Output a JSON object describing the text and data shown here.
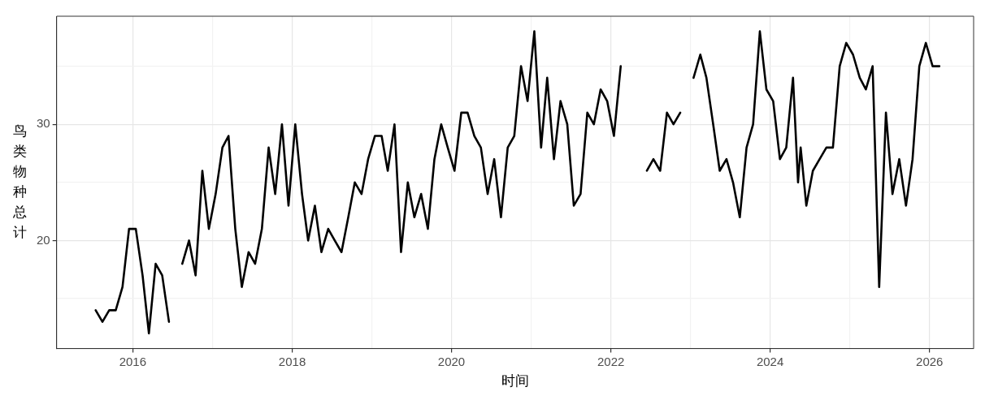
{
  "chart_data": {
    "type": "line",
    "xlabel": "时间",
    "ylabel": "鸟类物种总计",
    "x": [
      "2015-07-15",
      "2015-08-15",
      "2015-09-15",
      "2015-10-15",
      "2015-11-15",
      "2015-12-15",
      "2016-01-15",
      "2016-02-15",
      "2016-03-15",
      "2016-04-15",
      "2016-05-15",
      "2016-06-15",
      "2016-07-15",
      "2016-08-15",
      "2016-09-15",
      "2016-10-15",
      "2016-11-15",
      "2016-12-15",
      "2017-01-15",
      "2017-02-15",
      "2017-03-15",
      "2017-04-15",
      "2017-05-15",
      "2017-06-15",
      "2017-07-15",
      "2017-08-15",
      "2017-09-15",
      "2017-10-15",
      "2017-11-15",
      "2017-12-15",
      "2018-01-15",
      "2018-02-15",
      "2018-03-15",
      "2018-04-15",
      "2018-05-15",
      "2018-06-15",
      "2018-07-15",
      "2018-08-15",
      "2018-09-15",
      "2018-10-15",
      "2018-11-15",
      "2018-12-15",
      "2019-01-15",
      "2019-02-15",
      "2019-03-15",
      "2019-04-15",
      "2019-05-15",
      "2019-06-15",
      "2019-07-15",
      "2019-08-15",
      "2019-09-15",
      "2019-10-15",
      "2019-11-15",
      "2019-12-15",
      "2020-01-15",
      "2020-02-15",
      "2020-03-15",
      "2020-04-15",
      "2020-05-15",
      "2020-06-15",
      "2020-07-15",
      "2020-08-15",
      "2020-09-15",
      "2020-10-15",
      "2020-11-15",
      "2020-12-15",
      "2021-01-15",
      "2021-02-15",
      "2021-03-15",
      "2021-04-15",
      "2021-05-15",
      "2021-06-15",
      "2021-07-15",
      "2021-08-15",
      "2021-09-15",
      "2021-10-15",
      "2021-11-15",
      "2021-12-15",
      "2022-01-15",
      "2022-02-15",
      "2022-03-15",
      "2022-06-15",
      "2022-07-15",
      "2022-08-15",
      "2022-09-15",
      "2022-10-15",
      "2022-11-15",
      "2022-12-15",
      "2023-01-15",
      "2023-02-15",
      "2023-03-15",
      "2023-04-15",
      "2023-05-15",
      "2023-06-15",
      "2023-07-15",
      "2023-08-15",
      "2023-09-15",
      "2023-10-15",
      "2023-11-15",
      "2023-12-15",
      "2024-01-15",
      "2024-02-15",
      "2024-03-15",
      "2024-04-15",
      "2024-05-08",
      "2024-05-20",
      "2024-06-15",
      "2024-07-15",
      "2024-08-15",
      "2024-09-15",
      "2024-10-15",
      "2024-11-15",
      "2024-12-15",
      "2025-01-15",
      "2025-02-15",
      "2025-03-15",
      "2025-04-15",
      "2025-05-15",
      "2025-06-15",
      "2025-07-15",
      "2025-08-15",
      "2025-09-15",
      "2025-10-15",
      "2025-11-15",
      "2025-12-15",
      "2026-01-15",
      "2026-02-15"
    ],
    "series": [
      {
        "color": "#000000",
        "values": [
          14,
          13,
          14,
          14,
          16,
          21,
          21,
          17,
          12,
          18,
          17,
          13,
          null,
          18,
          20,
          17,
          26,
          21,
          24,
          28,
          29,
          21,
          16,
          19,
          18,
          21,
          28,
          24,
          30,
          23,
          30,
          24,
          20,
          23,
          19,
          21,
          20,
          19,
          22,
          25,
          24,
          27,
          29,
          29,
          26,
          30,
          19,
          25,
          22,
          24,
          21,
          27,
          30,
          28,
          26,
          31,
          31,
          29,
          28,
          24,
          27,
          22,
          28,
          29,
          35,
          32,
          38,
          28,
          34,
          27,
          32,
          30,
          23,
          24,
          31,
          30,
          33,
          32,
          29,
          35,
          null,
          26,
          27,
          26,
          31,
          30,
          31,
          null,
          34,
          36,
          34,
          30,
          26,
          27,
          25,
          22,
          28,
          30,
          38,
          33,
          32,
          27,
          28,
          34,
          25,
          28,
          23,
          26,
          27,
          28,
          28,
          35,
          37,
          36,
          34,
          33,
          35,
          16,
          31,
          24,
          27,
          23,
          27,
          35,
          37,
          35,
          35
        ]
      }
    ],
    "xlim": [
      "2015-01-17",
      "2026-07-22"
    ],
    "xticks": [
      {
        "value": "2016-01-01",
        "label": "2016"
      },
      {
        "value": "2017-01-01",
        "label": null
      },
      {
        "value": "2018-01-01",
        "label": "2018"
      },
      {
        "value": "2019-01-01",
        "label": null
      },
      {
        "value": "2020-01-01",
        "label": "2020"
      },
      {
        "value": "2021-01-01",
        "label": null
      },
      {
        "value": "2022-01-01",
        "label": "2022"
      },
      {
        "value": "2023-01-01",
        "label": null
      },
      {
        "value": "2024-01-01",
        "label": "2024"
      },
      {
        "value": "2025-01-01",
        "label": null
      },
      {
        "value": "2026-01-01",
        "label": "2026"
      }
    ],
    "ylim": [
      10.7,
      39.3
    ],
    "yticks": [
      {
        "value": 15,
        "label": null
      },
      20,
      {
        "value": 25,
        "label": null
      },
      30,
      {
        "value": 35,
        "label": null
      }
    ],
    "grid": true,
    "legend": false,
    "marker": "none",
    "line_style": "solid"
  }
}
